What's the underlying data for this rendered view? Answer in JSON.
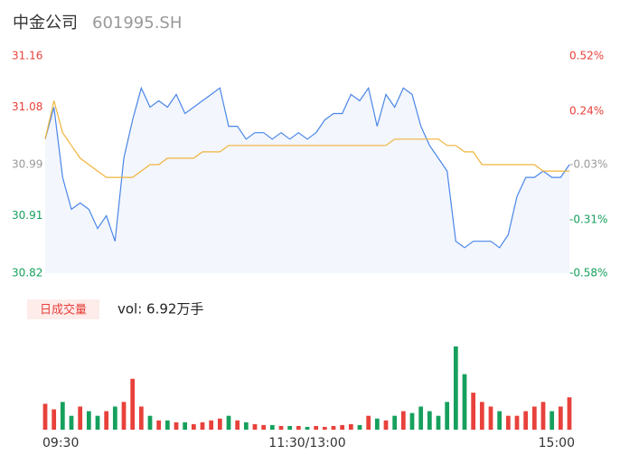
{
  "chart_data": [
    {
      "type": "line",
      "title": "中金公司",
      "subtitle": "601995.SH",
      "x": [
        0,
        4,
        8,
        12,
        16,
        20,
        24,
        28,
        32,
        36,
        40,
        44,
        48,
        52,
        56,
        60,
        64,
        68,
        72,
        76,
        80,
        84,
        88,
        92,
        96,
        100,
        104,
        108,
        112,
        116,
        120,
        124,
        128,
        132,
        136,
        140,
        144,
        148,
        152,
        156,
        160,
        164,
        168,
        172,
        176,
        180,
        184,
        188,
        192,
        196,
        200,
        204,
        208,
        212,
        216,
        220,
        224,
        228,
        232,
        236,
        240
      ],
      "series": [
        {
          "name": "price",
          "color": "#4a86e8",
          "values": [
            31.03,
            31.08,
            30.97,
            30.92,
            30.93,
            30.92,
            30.89,
            30.91,
            30.87,
            31.0,
            31.06,
            31.11,
            31.08,
            31.09,
            31.08,
            31.1,
            31.07,
            31.08,
            31.09,
            31.1,
            31.11,
            31.05,
            31.05,
            31.03,
            31.04,
            31.04,
            31.03,
            31.04,
            31.03,
            31.04,
            31.03,
            31.04,
            31.06,
            31.07,
            31.07,
            31.1,
            31.09,
            31.11,
            31.05,
            31.1,
            31.08,
            31.11,
            31.1,
            31.05,
            31.02,
            31.0,
            30.98,
            30.87,
            30.86,
            30.87,
            30.87,
            30.87,
            30.86,
            30.88,
            30.94,
            30.97,
            30.97,
            30.98,
            30.97,
            30.97,
            30.99
          ]
        },
        {
          "name": "average",
          "color": "#f0b43c",
          "values": [
            31.03,
            31.09,
            31.04,
            31.02,
            31.0,
            30.99,
            30.98,
            30.97,
            30.97,
            30.97,
            30.97,
            30.98,
            30.99,
            30.99,
            31.0,
            31.0,
            31.0,
            31.0,
            31.01,
            31.01,
            31.01,
            31.02,
            31.02,
            31.02,
            31.02,
            31.02,
            31.02,
            31.02,
            31.02,
            31.02,
            31.02,
            31.02,
            31.02,
            31.02,
            31.02,
            31.02,
            31.02,
            31.02,
            31.02,
            31.02,
            31.03,
            31.03,
            31.03,
            31.03,
            31.03,
            31.03,
            31.02,
            31.02,
            31.01,
            31.01,
            30.99,
            30.99,
            30.99,
            30.99,
            30.99,
            30.99,
            30.99,
            30.98,
            30.98,
            30.98,
            30.98
          ]
        }
      ],
      "xlim": [
        0,
        240
      ],
      "ylim": [
        30.82,
        31.16
      ],
      "yticks": [
        30.82,
        30.91,
        30.99,
        31.08,
        31.16
      ],
      "y2lim": [
        -0.58,
        0.52
      ],
      "y2ticks": [
        {
          "value": -0.58,
          "label": "-0.58%"
        },
        {
          "value": -0.31,
          "label": "-0.31%"
        },
        {
          "value": -0.03,
          "label": "-0.03%"
        },
        {
          "value": 0.24,
          "label": "0.24%"
        },
        {
          "value": 0.52,
          "label": "0.52%"
        }
      ],
      "tick_colors": [
        "#16a05d",
        "#16a05d",
        "#999999",
        "#e8413b",
        "#e8413b"
      ],
      "area_color": "#f3f6fd"
    },
    {
      "type": "bar",
      "title": "日成交量",
      "subtitle": "vol: 6.92万手",
      "x": [
        0,
        4,
        8,
        12,
        16,
        20,
        24,
        28,
        32,
        36,
        40,
        44,
        48,
        52,
        56,
        60,
        64,
        68,
        72,
        76,
        80,
        84,
        88,
        92,
        96,
        100,
        104,
        108,
        112,
        116,
        120,
        124,
        128,
        132,
        136,
        140,
        144,
        148,
        152,
        156,
        160,
        164,
        168,
        172,
        176,
        180,
        184,
        188,
        192,
        196,
        200,
        204,
        208,
        212,
        216,
        220,
        224,
        228,
        232,
        236,
        240
      ],
      "values": [
        28,
        22,
        30,
        15,
        25,
        20,
        15,
        20,
        25,
        30,
        55,
        25,
        15,
        10,
        10,
        8,
        8,
        6,
        8,
        10,
        12,
        15,
        10,
        8,
        6,
        5,
        5,
        4,
        4,
        4,
        3,
        4,
        3,
        4,
        5,
        6,
        5,
        15,
        12,
        10,
        15,
        20,
        18,
        25,
        20,
        15,
        30,
        90,
        60,
        40,
        30,
        25,
        20,
        15,
        15,
        20,
        25,
        30,
        20,
        25,
        35
      ],
      "up_color": "#e8413b",
      "down_color": "#16a05d",
      "xlim": [
        0,
        240
      ],
      "xticks": [
        {
          "value": 0,
          "label": "09:30"
        },
        {
          "value": 120,
          "label": "11:30/13:00"
        },
        {
          "value": 240,
          "label": "15:00"
        }
      ]
    }
  ]
}
